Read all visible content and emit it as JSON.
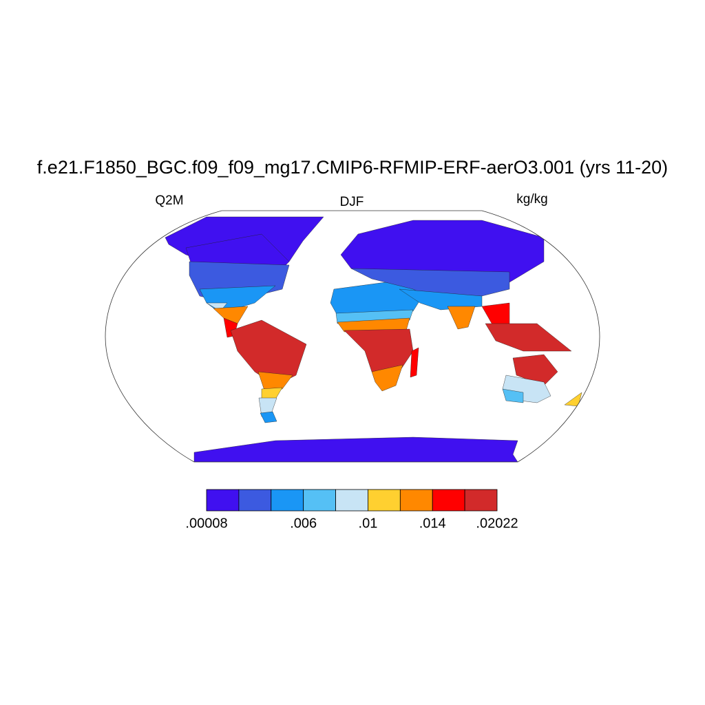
{
  "title": "f.e21.F1850_BGC.f09_f09_mg17.CMIP6-RFMIP-ERF-aerO3.001 (yrs 11-20)",
  "left_label": "Q2M",
  "center_label": "DJF",
  "right_label": "kg/kg",
  "colorbar": {
    "colors": [
      "#4010f0",
      "#3c5ae0",
      "#1a96f5",
      "#55c0f5",
      "#c8e4f5",
      "#ffd030",
      "#ff8800",
      "#ff0000",
      "#d22a2a"
    ],
    "labels": [
      {
        "value": 8e-05,
        "label": ".00008"
      },
      {
        "value": 0.006,
        "label": ".006"
      },
      {
        "value": 0.01,
        "label": ".01"
      },
      {
        "value": 0.014,
        "label": ".014"
      },
      {
        "value": 0.02022,
        "label": ".02022"
      }
    ]
  }
}
